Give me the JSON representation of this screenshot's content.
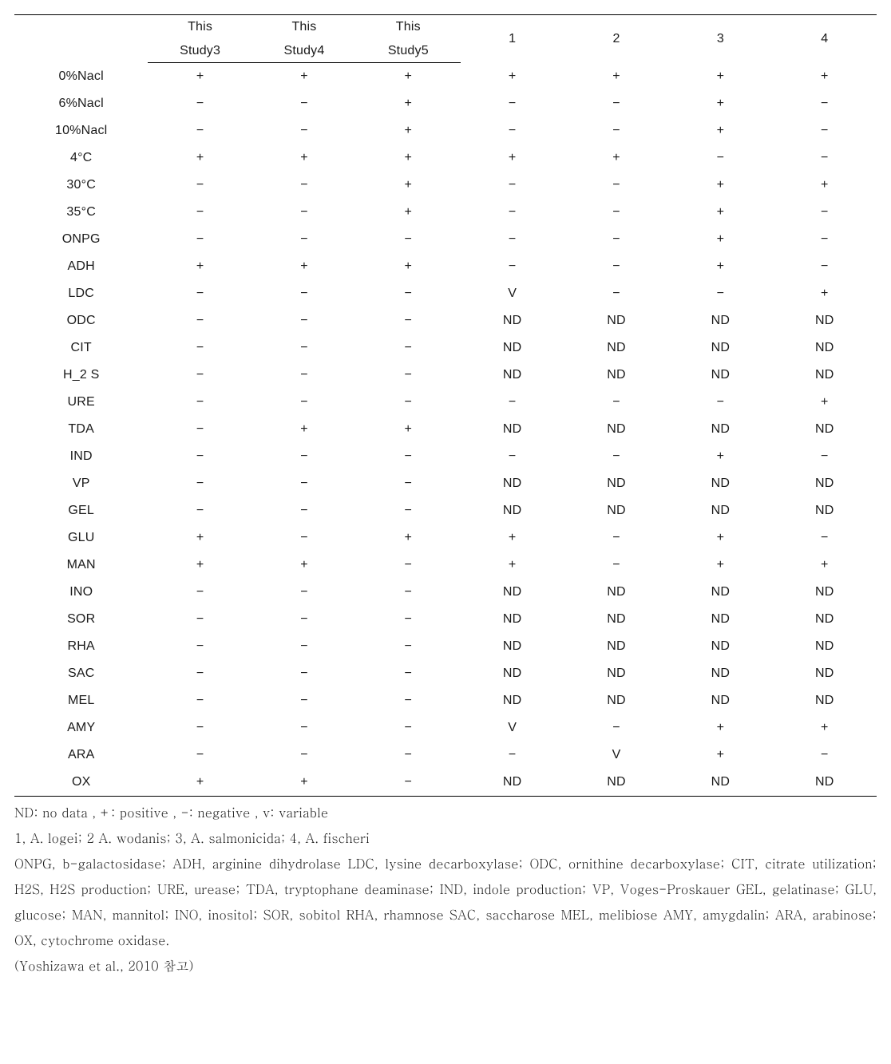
{
  "table": {
    "header": {
      "row_label": "",
      "columns": [
        {
          "line1": "This",
          "line2": "Study3"
        },
        {
          "line1": "This",
          "line2": "Study4"
        },
        {
          "line1": "This",
          "line2": "Study5"
        },
        {
          "line1": "1",
          "line2": ""
        },
        {
          "line1": "2",
          "line2": ""
        },
        {
          "line1": "3",
          "line2": ""
        },
        {
          "line1": "4",
          "line2": ""
        }
      ]
    },
    "rows": [
      {
        "label": "0%Nacl",
        "cells": [
          "+",
          "+",
          "+",
          "+",
          "+",
          "+",
          "+"
        ]
      },
      {
        "label": "6%Nacl",
        "cells": [
          "-",
          "-",
          "+",
          "-",
          "-",
          "+",
          "-"
        ]
      },
      {
        "label": "10%Nacl",
        "cells": [
          "-",
          "-",
          "+",
          "-",
          "-",
          "+",
          "-"
        ]
      },
      {
        "label": "4°C",
        "cells": [
          "+",
          "+",
          "+",
          "+",
          "+",
          "-",
          "-"
        ]
      },
      {
        "label": "30°C",
        "cells": [
          "-",
          "-",
          "+",
          "-",
          "-",
          "+",
          "+"
        ]
      },
      {
        "label": "35°C",
        "cells": [
          "-",
          "-",
          "+",
          "-",
          "-",
          "+",
          "-"
        ]
      },
      {
        "label": "ONPG",
        "cells": [
          "-",
          "-",
          "-",
          "-",
          "-",
          "+",
          "-"
        ]
      },
      {
        "label": "ADH",
        "cells": [
          "+",
          "+",
          "+",
          "-",
          "-",
          "+",
          "-"
        ]
      },
      {
        "label": "LDC",
        "cells": [
          "-",
          "-",
          "-",
          "V",
          "-",
          "-",
          "+"
        ]
      },
      {
        "label": "ODC",
        "cells": [
          "-",
          "-",
          "-",
          "ND",
          "ND",
          "ND",
          "ND"
        ]
      },
      {
        "label": "CIT",
        "cells": [
          "-",
          "-",
          "-",
          "ND",
          "ND",
          "ND",
          "ND"
        ]
      },
      {
        "label": "H_2 S",
        "cells": [
          "-",
          "-",
          "-",
          "ND",
          "ND",
          "ND",
          "ND"
        ]
      },
      {
        "label": "URE",
        "cells": [
          "-",
          "-",
          "-",
          "-",
          "-",
          "-",
          "+"
        ]
      },
      {
        "label": "TDA",
        "cells": [
          "-",
          "+",
          "+",
          "ND",
          "ND",
          "ND",
          "ND"
        ]
      },
      {
        "label": "IND",
        "cells": [
          "-",
          "-",
          "-",
          "-",
          "-",
          "+",
          "-"
        ]
      },
      {
        "label": "VP",
        "cells": [
          "-",
          "-",
          "-",
          "ND",
          "ND",
          "ND",
          "ND"
        ]
      },
      {
        "label": "GEL",
        "cells": [
          "-",
          "-",
          "-",
          "ND",
          "ND",
          "ND",
          "ND"
        ]
      },
      {
        "label": "GLU",
        "cells": [
          "+",
          "-",
          "+",
          "+",
          "-",
          "+",
          "-"
        ]
      },
      {
        "label": "MAN",
        "cells": [
          "+",
          "+",
          "-",
          "+",
          "-",
          "+",
          "+"
        ]
      },
      {
        "label": "INO",
        "cells": [
          "-",
          "-",
          "-",
          "ND",
          "ND",
          "ND",
          "ND"
        ]
      },
      {
        "label": "SOR",
        "cells": [
          "-",
          "-",
          "-",
          "ND",
          "ND",
          "ND",
          "ND"
        ]
      },
      {
        "label": "RHA",
        "cells": [
          "-",
          "-",
          "-",
          "ND",
          "ND",
          "ND",
          "ND"
        ]
      },
      {
        "label": "SAC",
        "cells": [
          "-",
          "-",
          "-",
          "ND",
          "ND",
          "ND",
          "ND"
        ]
      },
      {
        "label": "MEL",
        "cells": [
          "-",
          "-",
          "-",
          "ND",
          "ND",
          "ND",
          "ND"
        ]
      },
      {
        "label": "AMY",
        "cells": [
          "-",
          "-",
          "-",
          "V",
          "-",
          "+",
          "+"
        ]
      },
      {
        "label": "ARA",
        "cells": [
          "-",
          "-",
          "-",
          "-",
          "V",
          "+",
          "-"
        ]
      },
      {
        "label": "OX",
        "cells": [
          "+",
          "+",
          "-",
          "ND",
          "ND",
          "ND",
          "ND"
        ]
      }
    ]
  },
  "notes": {
    "line1": "ND: no data , +: positive , -: negative , v: variable",
    "line2": "1, A. logei; 2 A. wodanis; 3, A. salmonicida; 4, A. fischeri",
    "line3": "ONPG, b-galactosidase; ADH, arginine dihydrolase LDC, lysine decarboxylase; ODC, ornithine decarboxylase; CIT, citrate utilization; H2S, H2S production; URE, urease; TDA, tryptophane deaminase; IND, indole production; VP, Voges-Proskauer GEL, gelatinase; GLU, glucose; MAN, mannitol; INO, inositol; SOR, sobitol RHA, rhamnose SAC, saccharose MEL, melibiose AMY, amygdalin; ARA, arabinose; OX, cytochrome oxidase.",
    "line4": "(Yoshizawa et al., 2010 참고)"
  },
  "style": {
    "background_color": "#ffffff",
    "border_color": "#000000",
    "text_color": "#1a1a1a",
    "table_fontsize": 16,
    "notes_fontsize": 16,
    "notes_line_height": 2.0,
    "row_padding_v": 7,
    "plus_glyph": "+",
    "minus_glyph": "−"
  }
}
